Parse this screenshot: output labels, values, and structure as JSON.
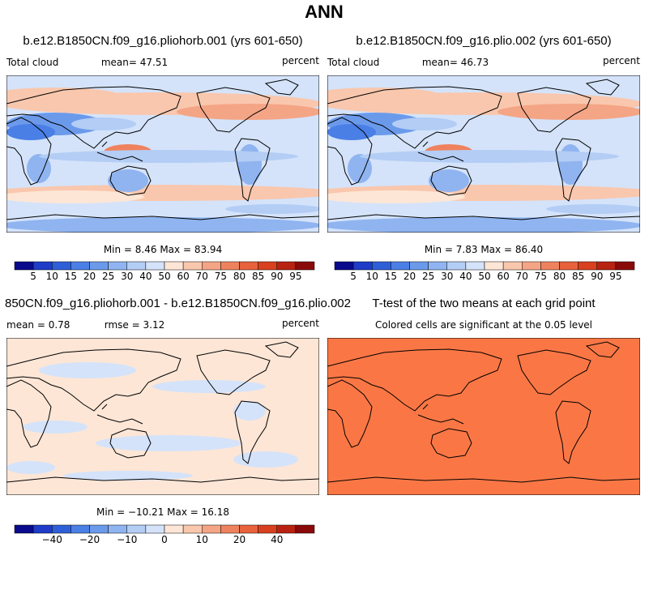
{
  "title": "ANN",
  "panels": [
    {
      "title": "b.e12.B1850CN.f09_g16.pliohorb.001 (yrs 601-650)",
      "left": "Total cloud",
      "center": "mean=  47.51",
      "right": "percent",
      "stats": "Min =   8.46 Max =  83.94"
    },
    {
      "title": "b.e12.B1850CN.f09_g16.plio.002 (yrs 601-650)",
      "left": "Total cloud",
      "center": "mean=  46.73",
      "right": "percent",
      "stats": "Min =   7.83 Max =  86.40"
    },
    {
      "title": "850CN.f09_g16.pliohorb.001 - b.e12.B1850CN.f09_g16.plio.002",
      "left": "mean =    0.78",
      "center": "rmse =    3.12",
      "right": "percent",
      "stats": "Min = −10.21 Max =  16.18"
    },
    {
      "title": "T-test of the two means at each grid point",
      "center": "Colored cells are significant at the 0.05 level"
    }
  ],
  "colorbars": [
    {
      "labels": [
        "5",
        "10",
        "15",
        "20",
        "25",
        "30",
        "40",
        "50",
        "60",
        "70",
        "75",
        "80",
        "85",
        "90",
        "95"
      ]
    },
    {
      "labels": [
        "5",
        "10",
        "15",
        "20",
        "25",
        "30",
        "40",
        "50",
        "60",
        "70",
        "75",
        "80",
        "85",
        "90",
        "95"
      ]
    },
    {
      "labels": [
        null,
        "−40",
        null,
        "−20",
        null,
        "−10",
        null,
        "0",
        null,
        "10",
        null,
        "20",
        null,
        "40",
        null
      ]
    }
  ],
  "colors": [
    "#0a0a8c",
    "#1e3cc8",
    "#2f5fd8",
    "#4a7fe6",
    "#6b9aeb",
    "#8fb4f0",
    "#b3cdf5",
    "#d4e3fa",
    "#fde6d6",
    "#f9c7ad",
    "#f4a585",
    "#ef825e",
    "#e8623c",
    "#d8401f",
    "#b82210",
    "#8a0a0a"
  ]
}
